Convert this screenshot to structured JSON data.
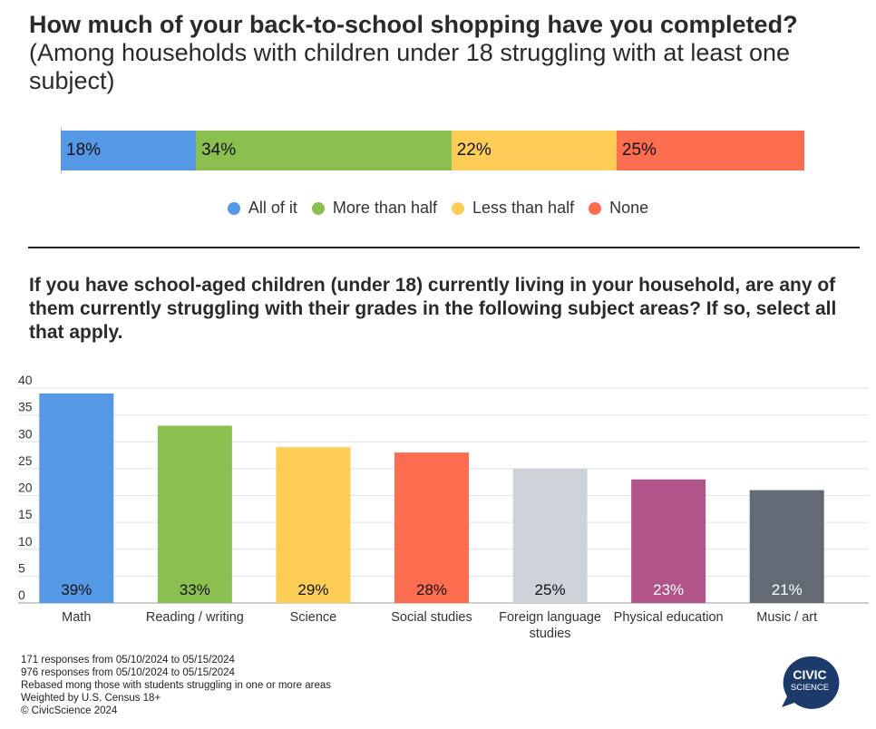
{
  "chart1": {
    "title": "How much of your back-to-school shopping have you completed?",
    "subtitle": "(Among households with children under 18 struggling with at least one subject)"
  },
  "chart2": {
    "title": "If you have school-aged children (under 18) currently living in your household, are any of them currently struggling with their grades in the following subject areas? If so, select all that apply."
  },
  "chart_data": [
    {
      "type": "bar",
      "orientation": "horizontal-stacked",
      "title": "How much of your back-to-school shopping have you completed?",
      "subtitle": "(Among households with children under 18 struggling with at least one subject)",
      "series": [
        {
          "name": "All of it",
          "value": 18,
          "label": "18%",
          "color": "#5599e6"
        },
        {
          "name": "More than half",
          "value": 34,
          "label": "34%",
          "color": "#8bbf50"
        },
        {
          "name": "Less than half",
          "value": 22,
          "label": "22%",
          "color": "#fdcd56"
        },
        {
          "name": "None",
          "value": 25,
          "label": "25%",
          "color": "#fd6e50"
        }
      ],
      "legend": "bottom"
    },
    {
      "type": "bar",
      "title": "If you have school-aged children (under 18) currently living in your household, are any of them currently struggling with their grades in the following subject areas? If so, select all that apply.",
      "categories": [
        "Math",
        "Reading / writing",
        "Science",
        "Social studies",
        "Foreign language studies",
        "Physical education",
        "Music / art"
      ],
      "values": [
        39,
        33,
        29,
        28,
        25,
        23,
        21
      ],
      "labels": [
        "39%",
        "33%",
        "29%",
        "28%",
        "25%",
        "23%",
        "21%"
      ],
      "colors": [
        "#5599e6",
        "#8bbf50",
        "#fdcd56",
        "#fd6e50",
        "#ced3da",
        "#b0548a",
        "#636a76"
      ],
      "label_colors": [
        "#111111",
        "#111111",
        "#111111",
        "#111111",
        "#111111",
        "#ffffff",
        "#ffffff"
      ],
      "ylim": [
        0,
        40
      ],
      "yticks": [
        "0",
        "5",
        "10",
        "15",
        "20",
        "25",
        "30",
        "35",
        "40"
      ],
      "grid": true
    }
  ],
  "footer": {
    "lines": [
      "171 responses from 05/10/2024 to 05/15/2024",
      "976 responses from 05/10/2024 to 05/15/2024",
      "Rebased mong those with students struggling in one or more areas",
      "Weighted by U.S. Census 18+",
      "© CivicScience 2024"
    ]
  },
  "logo": {
    "line1": "CIVIC",
    "line2": "SCIENCE",
    "color": "#1c3b6a"
  }
}
